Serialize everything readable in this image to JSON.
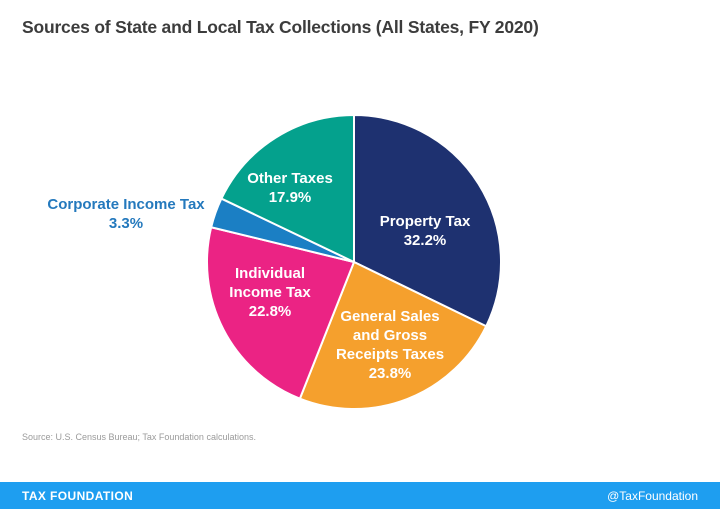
{
  "title": "Sources of State and Local Tax Collections (All States, FY 2020)",
  "source_note": "Source: U.S. Census Bureau; Tax Foundation calculations.",
  "footer": {
    "brand": "TAX FOUNDATION",
    "handle": "@TaxFoundation",
    "bar_color": "#1e9ef0"
  },
  "chart_data": {
    "type": "pie",
    "title": "Sources of State and Local Tax Collections (All States, FY 2020)",
    "start_angle_deg": 0,
    "direction": "clockwise",
    "legend_position": "none",
    "total": 100,
    "slices": [
      {
        "label": "Property Tax",
        "value": 32.2,
        "color": "#1e3170",
        "label_lines": [
          "Property Tax",
          "32.2%"
        ],
        "label_color": "#ffffff",
        "label_inside": true
      },
      {
        "label": "General Sales and Gross Receipts Taxes",
        "value": 23.8,
        "color": "#f5a02d",
        "label_lines": [
          "General Sales",
          "and Gross",
          "Receipts Taxes",
          "23.8%"
        ],
        "label_color": "#ffffff",
        "label_inside": true
      },
      {
        "label": "Individual Income Tax",
        "value": 22.8,
        "color": "#eb2384",
        "label_lines": [
          "Individual",
          "Income Tax",
          "22.8%"
        ],
        "label_color": "#ffffff",
        "label_inside": true
      },
      {
        "label": "Corporate Income Tax",
        "value": 3.3,
        "color": "#1b7fc4",
        "label_lines": [
          "Corporate Income Tax",
          "3.3%"
        ],
        "label_color": "#2479bd",
        "label_inside": false
      },
      {
        "label": "Other Taxes",
        "value": 17.9,
        "color": "#04a18d",
        "label_lines": [
          "Other Taxes",
          "17.9%"
        ],
        "label_color": "#ffffff",
        "label_inside": true
      }
    ]
  }
}
